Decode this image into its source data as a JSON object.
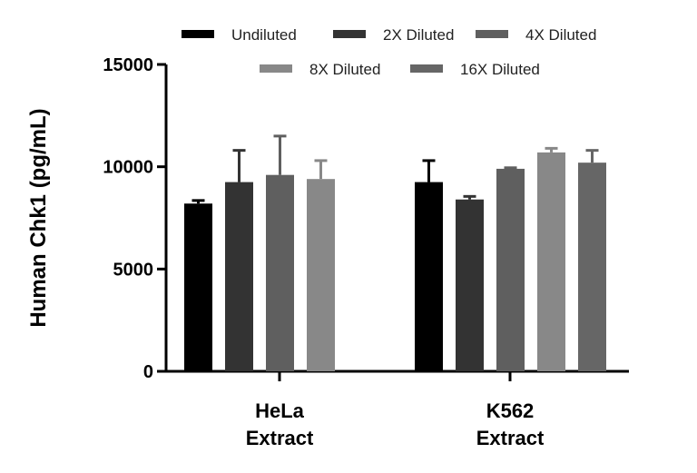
{
  "chart_data": {
    "type": "bar",
    "title": "",
    "xlabel": "",
    "ylabel": "Human Chk1 (pg/mL)",
    "ylim": [
      0,
      15000
    ],
    "yticks": [
      0,
      5000,
      10000,
      15000
    ],
    "ytick_labels": [
      "0",
      "5000",
      "10000",
      "15000"
    ],
    "grid": false,
    "legend_position": "top",
    "categories": [
      {
        "line1": "HeLa",
        "line2": "Extract"
      },
      {
        "line1": "K562",
        "line2": "Extract"
      }
    ],
    "series": [
      {
        "name": "Undiluted",
        "color": "#000000",
        "values": [
          8200,
          9250
        ],
        "errors": [
          150,
          1050
        ]
      },
      {
        "name": "2X Diluted",
        "color": "#333333",
        "values": [
          9250,
          8400
        ],
        "errors": [
          1550,
          150
        ]
      },
      {
        "name": "4X Diluted",
        "color": "#5f5f5f",
        "values": [
          9600,
          9900
        ],
        "errors": [
          1900,
          50
        ]
      },
      {
        "name": "8X Diluted",
        "color": "#888888",
        "values": [
          9400,
          10700
        ],
        "errors": [
          900,
          200
        ]
      },
      {
        "name": "16X Diluted",
        "color": "#666666",
        "values": [
          null,
          10200
        ],
        "errors": [
          null,
          600
        ]
      }
    ]
  }
}
